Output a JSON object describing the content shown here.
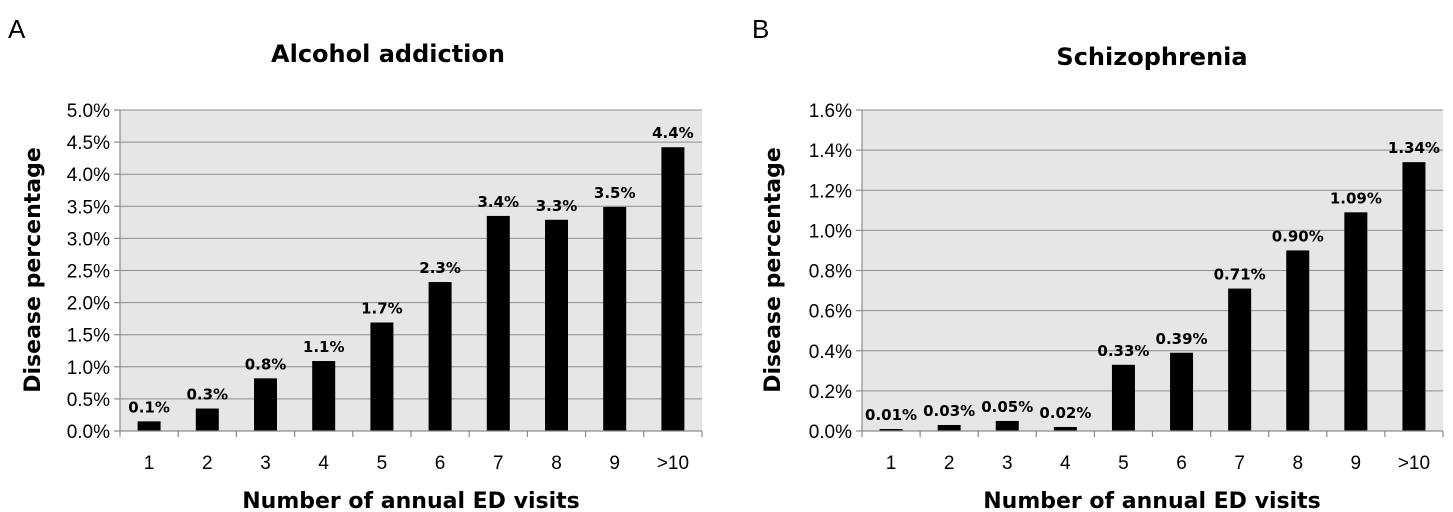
{
  "chart_data": [
    {
      "type": "bar",
      "panel_label": "A",
      "title": "Alcohol addiction",
      "xlabel": "Number of annual ED visits",
      "ylabel": "Disease percentage",
      "categories": [
        "1",
        "2",
        "3",
        "4",
        "5",
        "6",
        "7",
        "8",
        "9",
        ">10"
      ],
      "values": [
        0.15,
        0.35,
        0.82,
        1.09,
        1.69,
        2.32,
        3.35,
        3.29,
        3.49,
        4.42
      ],
      "data_labels": [
        "0.1%",
        "0.3%",
        "0.8%",
        "1.1%",
        "1.7%",
        "2.3%",
        "3.4%",
        "3.3%",
        "3.5%",
        "4.4%"
      ],
      "ylim": [
        0,
        5.0
      ],
      "yticks": [
        0,
        0.5,
        1.0,
        1.5,
        2.0,
        2.5,
        3.0,
        3.5,
        4.0,
        4.5,
        5.0
      ],
      "ytick_labels": [
        "0.0%",
        "0.5%",
        "1.0%",
        "1.5%",
        "2.0%",
        "2.5%",
        "3.0%",
        "3.5%",
        "4.0%",
        "4.5%",
        "5.0%"
      ],
      "grid": true,
      "bar_color": "#000000",
      "plot_background": "#e6e6e6"
    },
    {
      "type": "bar",
      "panel_label": "B",
      "title": "Schizophrenia",
      "xlabel": "Number of annual ED visits",
      "ylabel": "Disease percentage",
      "categories": [
        "1",
        "2",
        "3",
        "4",
        "5",
        "6",
        "7",
        "8",
        "9",
        ">10"
      ],
      "values": [
        0.01,
        0.03,
        0.05,
        0.02,
        0.33,
        0.39,
        0.71,
        0.9,
        1.09,
        1.34
      ],
      "data_labels": [
        "0.01%",
        "0.03%",
        "0.05%",
        "0.02%",
        "0.33%",
        "0.39%",
        "0.71%",
        "0.90%",
        "1.09%",
        "1.34%"
      ],
      "ylim": [
        0,
        1.6
      ],
      "yticks": [
        0,
        0.2,
        0.4,
        0.6,
        0.8,
        1.0,
        1.2,
        1.4,
        1.6
      ],
      "ytick_labels": [
        "0.0%",
        "0.2%",
        "0.4%",
        "0.6%",
        "0.8%",
        "1.0%",
        "1.2%",
        "1.4%",
        "1.6%"
      ],
      "grid": true,
      "bar_color": "#000000",
      "plot_background": "#e6e6e6"
    }
  ]
}
